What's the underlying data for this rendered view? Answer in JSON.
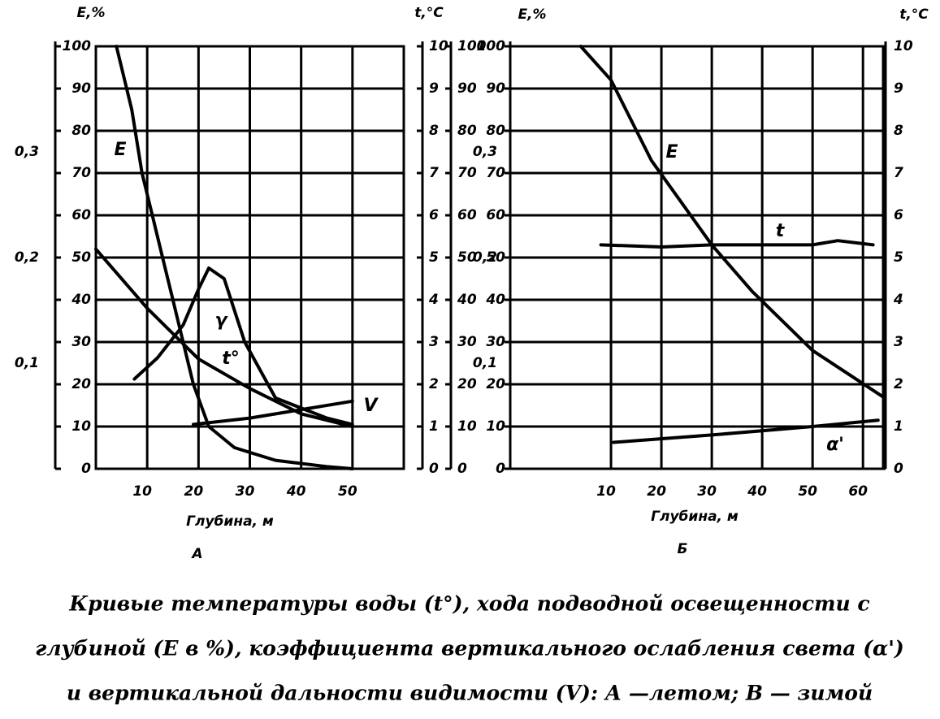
{
  "chart_data": [
    {
      "type": "line",
      "ylabel": "E,%",
      "y2label": "t,°C",
      "xlabel": "Глубина, м",
      "panel_label": "А",
      "xlim": [
        0,
        60
      ],
      "xticks": [
        10,
        20,
        30,
        40,
        50
      ],
      "ylim": [
        0,
        100
      ],
      "yticks": [
        0,
        10,
        20,
        30,
        40,
        50,
        60,
        70,
        80,
        90,
        100
      ],
      "y2lim": [
        0,
        10
      ],
      "y2ticks": [
        0,
        1,
        2,
        3,
        4,
        5,
        6,
        7,
        8,
        9,
        10
      ],
      "y3lim": [
        0,
        0.4
      ],
      "y3ticks": [
        {
          "value": 0.1,
          "label": "0,1"
        },
        {
          "value": 0.2,
          "label": "0,2"
        },
        {
          "value": 0.3,
          "label": "0,3"
        }
      ],
      "y4lim": [
        0,
        100
      ],
      "y4ticks": [
        0,
        10,
        20,
        30,
        40,
        50,
        60,
        70,
        80,
        90,
        100
      ],
      "grid": true,
      "series": [
        {
          "name": "E",
          "color": "#000000",
          "axis": "y",
          "x": [
            4,
            7,
            9,
            11,
            13,
            15,
            17,
            19,
            22,
            27,
            35,
            45,
            50
          ],
          "values": [
            100,
            85,
            70,
            60,
            50,
            40,
            30,
            20,
            10,
            5,
            2,
            0.5,
            0
          ]
        },
        {
          "name": "γ",
          "color": "#000000",
          "axis": "y3",
          "x": [
            7.5,
            12,
            17,
            20,
            22,
            25,
            29,
            35,
            45,
            50
          ],
          "values": [
            0.085,
            0.105,
            0.136,
            0.17,
            0.19,
            0.18,
            0.12,
            0.067,
            0.048,
            0.042
          ]
        },
        {
          "name": "t°",
          "color": "#000000",
          "axis": "y2",
          "x": [
            0,
            10,
            20,
            30,
            40,
            50
          ],
          "values": [
            5.2,
            3.8,
            2.6,
            1.9,
            1.3,
            1.0
          ]
        },
        {
          "name": "V",
          "color": "#000000",
          "axis": "y4",
          "x": [
            19,
            30,
            40,
            50
          ],
          "values": [
            10.5,
            12,
            14,
            16
          ]
        }
      ]
    },
    {
      "type": "line",
      "ylabel": "E,%",
      "y2label": "t,°C",
      "xlabel": "Глубина, м",
      "panel_label": "Б",
      "xlim": [
        -10,
        64
      ],
      "xticks": [
        10,
        20,
        30,
        40,
        50,
        60
      ],
      "ylim": [
        0,
        100
      ],
      "yticks": [
        0,
        10,
        20,
        30,
        40,
        50,
        60,
        70,
        80,
        90,
        100
      ],
      "y2lim": [
        0,
        10
      ],
      "y2ticks": [
        0,
        1,
        2,
        3,
        4,
        5,
        6,
        7,
        8,
        9,
        10
      ],
      "y3lim": [
        0,
        0.4
      ],
      "y3ticks": [
        {
          "value": 0.1,
          "label": "0,1"
        },
        {
          "value": 0.2,
          "label": "0,2"
        },
        {
          "value": 0.3,
          "label": "0,3"
        }
      ],
      "grid": true,
      "series": [
        {
          "name": "E",
          "color": "#000000",
          "axis": "y",
          "x": [
            4,
            10,
            18,
            30,
            38,
            50,
            64
          ],
          "values": [
            100,
            92,
            73,
            53,
            42,
            28,
            17
          ]
        },
        {
          "name": "t",
          "color": "#000000",
          "axis": "y2",
          "x": [
            8,
            20,
            30,
            40,
            50,
            55,
            62
          ],
          "values": [
            5.3,
            5.25,
            5.3,
            5.3,
            5.3,
            5.4,
            5.3
          ]
        },
        {
          "name": "α'",
          "color": "#000000",
          "axis": "y3",
          "x": [
            10.5,
            30,
            50,
            63
          ],
          "values": [
            0.025,
            0.032,
            0.04,
            0.046
          ]
        }
      ]
    }
  ],
  "caption": [
    "Кривые температуры воды (t°), хода подводной освещенности с",
    "глубиной (E в %), коэффициента вертикального ослабления света (α')",
    "и вертикальной дальности видимости (V): А —летом; В — зимой"
  ]
}
